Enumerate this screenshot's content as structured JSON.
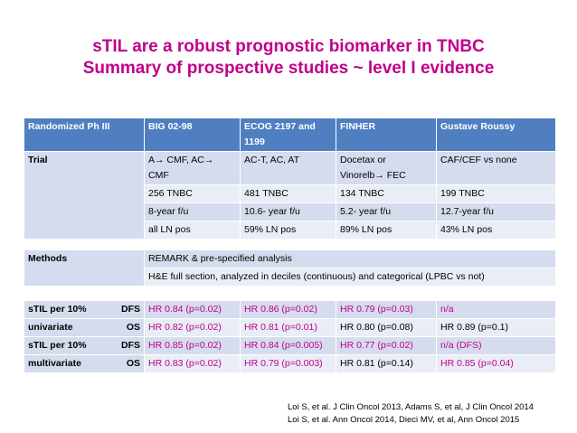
{
  "title_line1": "sTIL are a robust prognostic biomarker in TNBC",
  "title_line2": "Summary of prospective studies ~ level I evidence",
  "table1": {
    "header": [
      "Randomized Ph III",
      "BIG 02-98",
      "ECOG 2197 and 1199",
      "FINHER",
      "Gustave Roussy"
    ],
    "trial_label": "Trial",
    "rows": [
      [
        "A→ CMF, AC→ CMF",
        "AC-T, AC, AT",
        "Docetax or Vinorelb→ FEC",
        "CAF/CEF vs none"
      ],
      [
        "256 TNBC",
        "481 TNBC",
        "134 TNBC",
        "199 TNBC"
      ],
      [
        "8-year f/u",
        "10.6- year f/u",
        "5.2- year f/u",
        "12.7-year f/u"
      ],
      [
        "all LN pos",
        "59% LN pos",
        "89% LN pos",
        "43% LN pos"
      ]
    ]
  },
  "table2": {
    "label": "Methods",
    "line1": "REMARK & pre-specified analysis",
    "line2": "H&E full section, analyzed in deciles (continuous) and categorical (LPBC vs not)"
  },
  "table3": {
    "uni_label1": "sTIL per 10%",
    "uni_label2": "univariate",
    "multi_label1": "sTIL per 10%",
    "multi_label2": "multivariate",
    "dfs": "DFS",
    "os": "OS",
    "uni_dfs": [
      "HR 0.84 (p=0.02)",
      "HR 0.86 (p=0.02)",
      "HR 0.79 (p=0.03)",
      "n/a"
    ],
    "uni_os": [
      "HR 0.82 (p=0.02)",
      "HR 0.81 (p=0.01)",
      "HR 0.80 (p=0.08)",
      "HR 0.89 (p=0.1)"
    ],
    "multi_dfs": [
      "HR 0.85 (p=0.02)",
      "HR 0.84 (p=0.005)",
      "HR 0.77 (p=0.02)",
      "n/a (DFS)"
    ],
    "multi_os": [
      "HR 0.83 (p=0.02)",
      "HR 0.79 (p=0.003)",
      "HR 0.81 (p=0.14)",
      "HR 0.85 (p=0.04)"
    ]
  },
  "refs": {
    "line1": "Loi S, et al. J Clin Oncol 2013,   Adams S, et al, J Clin Oncol 2014",
    "line2": "Loi S, et al.  Ann Oncol 2014,     Dieci MV, et al, Ann Oncol 2015"
  },
  "colors": {
    "title": "#c0008a",
    "header": "#4f7fc0",
    "cell": "#d5dcee",
    "significant": "#c0008a"
  }
}
